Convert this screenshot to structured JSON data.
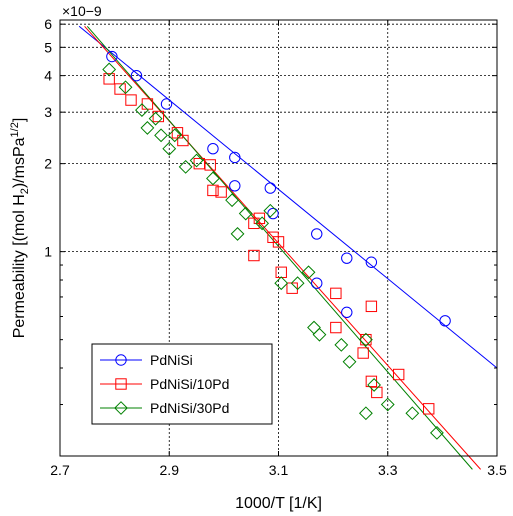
{
  "chart_data": {
    "type": "scatter",
    "xlabel": "1000/T [1/K]",
    "ylabel": "Permeability [(mol H2)/msPa1/2]",
    "y_multiplier": "×10−9",
    "x_scale": "linear",
    "y_scale": "log",
    "xlim": [
      2.7,
      3.5
    ],
    "ylim": [
      0.2,
      6.2
    ],
    "x_ticks": [
      "2.7",
      "2.9",
      "3.1",
      "3.3",
      "3.5"
    ],
    "x_tick_values": [
      2.7,
      2.9,
      3.1,
      3.3,
      3.5
    ],
    "y_ticks": [
      "1",
      "2",
      "3",
      "4",
      "5",
      "6"
    ],
    "y_tick_values": [
      1,
      2,
      3,
      4,
      5,
      6
    ],
    "grid": true,
    "legend_position": "bottom-left",
    "series": [
      {
        "name": "PdNiSi",
        "color": "#0000ff",
        "marker": "circle",
        "points": [
          [
            2.795,
            4.65
          ],
          [
            2.84,
            4.0
          ],
          [
            2.895,
            3.2
          ],
          [
            2.98,
            2.25
          ],
          [
            3.02,
            2.1
          ],
          [
            3.02,
            1.68
          ],
          [
            3.085,
            1.65
          ],
          [
            3.09,
            1.35
          ],
          [
            3.17,
            1.15
          ],
          [
            3.17,
            0.78
          ],
          [
            3.225,
            0.95
          ],
          [
            3.225,
            0.62
          ],
          [
            3.27,
            0.92
          ],
          [
            3.405,
            0.58
          ]
        ],
        "fit": [
          [
            2.735,
            5.9
          ],
          [
            3.5,
            0.4
          ]
        ]
      },
      {
        "name": "PdNiSi/10Pd",
        "color": "#ff0000",
        "marker": "square",
        "points": [
          [
            2.79,
            3.9
          ],
          [
            2.81,
            3.6
          ],
          [
            2.83,
            3.3
          ],
          [
            2.86,
            3.2
          ],
          [
            2.88,
            2.9
          ],
          [
            2.915,
            2.55
          ],
          [
            2.925,
            2.4
          ],
          [
            2.955,
            2.0
          ],
          [
            2.975,
            1.98
          ],
          [
            2.98,
            1.62
          ],
          [
            2.995,
            1.6
          ],
          [
            3.055,
            1.25
          ],
          [
            3.055,
            0.97
          ],
          [
            3.065,
            1.3
          ],
          [
            3.09,
            1.12
          ],
          [
            3.1,
            1.08
          ],
          [
            3.105,
            0.85
          ],
          [
            3.125,
            0.75
          ],
          [
            3.205,
            0.72
          ],
          [
            3.27,
            0.65
          ],
          [
            3.205,
            0.55
          ],
          [
            3.255,
            0.45
          ],
          [
            3.26,
            0.5
          ],
          [
            3.27,
            0.36
          ],
          [
            3.28,
            0.33
          ],
          [
            3.32,
            0.38
          ],
          [
            3.375,
            0.29
          ]
        ],
        "fit": [
          [
            2.745,
            5.9
          ],
          [
            3.47,
            0.18
          ]
        ]
      },
      {
        "name": "PdNiSi/30Pd",
        "color": "#008000",
        "marker": "diamond",
        "points": [
          [
            2.79,
            4.2
          ],
          [
            2.82,
            3.65
          ],
          [
            2.85,
            3.05
          ],
          [
            2.86,
            2.65
          ],
          [
            2.875,
            2.85
          ],
          [
            2.885,
            2.5
          ],
          [
            2.9,
            2.25
          ],
          [
            2.91,
            2.5
          ],
          [
            2.93,
            1.95
          ],
          [
            2.95,
            2.05
          ],
          [
            2.98,
            1.78
          ],
          [
            3.015,
            1.5
          ],
          [
            3.025,
            1.15
          ],
          [
            3.04,
            1.35
          ],
          [
            3.07,
            1.25
          ],
          [
            3.085,
            1.38
          ],
          [
            3.105,
            0.78
          ],
          [
            3.135,
            0.78
          ],
          [
            3.155,
            0.85
          ],
          [
            3.165,
            0.55
          ],
          [
            3.175,
            0.52
          ],
          [
            3.215,
            0.48
          ],
          [
            3.23,
            0.42
          ],
          [
            3.26,
            0.5
          ],
          [
            3.275,
            0.35
          ],
          [
            3.3,
            0.3
          ],
          [
            3.26,
            0.28
          ],
          [
            3.345,
            0.28
          ],
          [
            3.39,
            0.24
          ]
        ],
        "fit": [
          [
            2.75,
            5.9
          ],
          [
            3.455,
            0.18
          ]
        ]
      }
    ]
  }
}
